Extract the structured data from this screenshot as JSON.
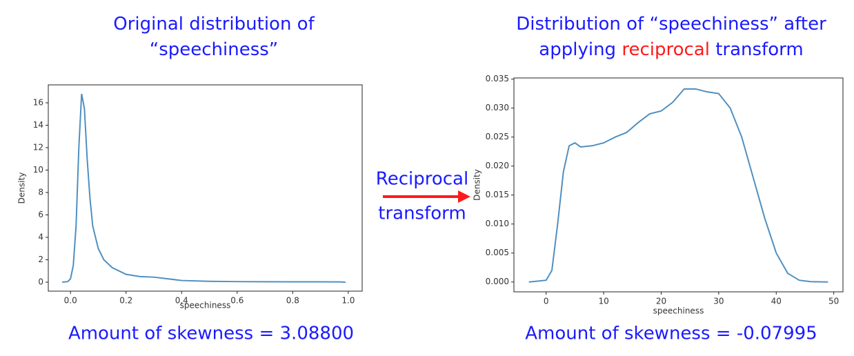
{
  "chart_data": [
    {
      "type": "line",
      "title": "Original distribution of “speechiness”",
      "x_label": "speechiness",
      "y_label": "Density",
      "x": [
        -0.03,
        -0.01,
        0.0,
        0.01,
        0.02,
        0.03,
        0.04,
        0.05,
        0.06,
        0.07,
        0.08,
        0.1,
        0.12,
        0.15,
        0.2,
        0.25,
        0.3,
        0.35,
        0.4,
        0.5,
        0.6,
        0.7,
        0.8,
        0.9,
        0.97,
        0.99
      ],
      "series": [
        {
          "name": "speechiness",
          "color": "#4f8fc0",
          "values": [
            0,
            0.05,
            0.3,
            1.5,
            5,
            12,
            16.8,
            15.5,
            11,
            7.5,
            5,
            3,
            2,
            1.3,
            0.7,
            0.5,
            0.45,
            0.3,
            0.15,
            0.08,
            0.05,
            0.04,
            0.03,
            0.03,
            0.02,
            0
          ]
        }
      ],
      "xlim": [
        -0.08,
        1.05
      ],
      "xticks": [
        {
          "value": 0,
          "label": "0.0"
        },
        0.2,
        0.4,
        0.6,
        0.8,
        {
          "value": 1,
          "label": "1.0"
        }
      ],
      "ylim": [
        -0.8,
        17.6
      ],
      "yticks": [
        0,
        2,
        4,
        6,
        8,
        10,
        12,
        14,
        16
      ],
      "annotation": "Amount of skewness = 3.08800"
    },
    {
      "type": "line",
      "title": [
        "Distribution of “speechiness” after applying ",
        "reciprocal",
        " transform"
      ],
      "title_highlight": 1,
      "title_highlight_color": "#ff1a1a",
      "x_label": "speechiness",
      "y_label": "Density",
      "x": [
        -3,
        0,
        1,
        2,
        3,
        4,
        5,
        6,
        8,
        10,
        12,
        14,
        16,
        18,
        20,
        22,
        24,
        26,
        28,
        30,
        32,
        34,
        36,
        38,
        40,
        42,
        44,
        46,
        49
      ],
      "series": [
        {
          "name": "speechiness",
          "color": "#4f8fc0",
          "values": [
            0,
            0.0003,
            0.002,
            0.01,
            0.019,
            0.0235,
            0.024,
            0.0233,
            0.0235,
            0.024,
            0.025,
            0.0258,
            0.0275,
            0.029,
            0.0295,
            0.031,
            0.0333,
            0.0333,
            0.0328,
            0.0325,
            0.03,
            0.025,
            0.018,
            0.011,
            0.005,
            0.0015,
            0.0003,
            5e-05,
            0
          ]
        }
      ],
      "xlim": [
        -5.6,
        51.6
      ],
      "xticks": [
        0,
        10,
        20,
        30,
        40,
        50
      ],
      "ylim": [
        -0.0017,
        0.0352
      ],
      "yticks": [
        {
          "value": 0,
          "label": "0.000"
        },
        {
          "value": 0.005,
          "label": "0.005"
        },
        {
          "value": 0.01,
          "label": "0.010"
        },
        {
          "value": 0.015,
          "label": "0.015"
        },
        {
          "value": 0.02,
          "label": "0.020"
        },
        {
          "value": 0.025,
          "label": "0.025"
        },
        {
          "value": 0.03,
          "label": "0.030"
        },
        {
          "value": 0.035,
          "label": "0.035"
        }
      ],
      "annotation": "Amount of skewness = -0.07995"
    }
  ],
  "arrow_label": [
    "Reciprocal",
    "transform"
  ]
}
